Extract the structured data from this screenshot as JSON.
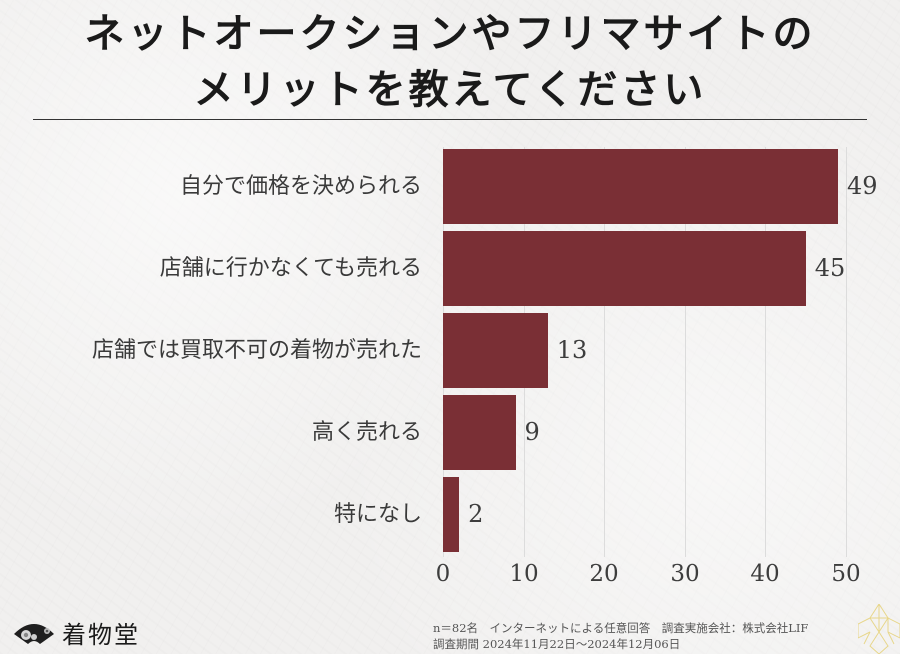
{
  "title": {
    "line1": "ネットオークションやフリマサイトの",
    "line2": "メリットを教えてください"
  },
  "colors": {
    "bar": "#7a2f35",
    "background": "#f1f0ef",
    "text": "#3a3a3a",
    "gridline": "#dcdcdc"
  },
  "chart_data": {
    "type": "bar",
    "orientation": "horizontal",
    "title": "ネットオークションやフリマサイトのメリットを教えてください",
    "categories": [
      "自分で価格を決められる",
      "店舗に行かなくても売れる",
      "店舗では買取不可の着物が売れた",
      "高く売れる",
      "特になし"
    ],
    "values": [
      49,
      45,
      13,
      9,
      2
    ],
    "value_labels": [
      "49",
      "45",
      "13",
      "9",
      "2"
    ],
    "xlabel": "",
    "ylabel": "",
    "xlim": [
      0,
      50
    ],
    "x_ticks": [
      "0",
      "10",
      "20",
      "30",
      "40",
      "50"
    ],
    "grid": "vertical",
    "legend": "none"
  },
  "axis": {
    "ticks": [
      "0",
      "10",
      "20",
      "30",
      "40",
      "50"
    ]
  },
  "brand": {
    "name": "着物堂",
    "icon": "folding-fan-icon"
  },
  "footnote": {
    "line1": "n＝82名　インターネットによる任意回答　調査実施会社：株式会社LIF",
    "line2": "調査期間  2024年11月22日～2024年12月06日"
  }
}
